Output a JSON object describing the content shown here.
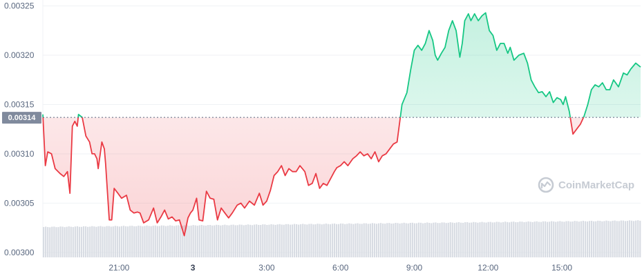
{
  "chart_data": {
    "type": "area",
    "reference_price": 0.003137,
    "reference_label": "0.00314",
    "y_ticks": [
      "0.00300",
      "0.00305",
      "0.00310",
      "0.00315",
      "0.00320",
      "0.00325"
    ],
    "ylim": [
      0.002995,
      0.003256
    ],
    "x_ticks": [
      {
        "label": "21:00",
        "hour": 21.0,
        "bold": false
      },
      {
        "label": "3",
        "hour": 24.0,
        "bold": true
      },
      {
        "label": "3:00",
        "hour": 27.0,
        "bold": false
      },
      {
        "label": "6:00",
        "hour": 30.0,
        "bold": false
      },
      {
        "label": "9:00",
        "hour": 33.0,
        "bold": false
      },
      {
        "label": "12:00",
        "hour": 36.0,
        "bold": false
      },
      {
        "label": "15:00",
        "hour": 39.0,
        "bold": false
      }
    ],
    "x_range_hours": [
      17.9,
      42.2
    ],
    "series": [
      {
        "hour": [
          17.9,
          18.0,
          18.1,
          18.25,
          18.4,
          18.6,
          18.75,
          18.9,
          19.0,
          19.1,
          19.2,
          19.3,
          19.35,
          19.5,
          19.65,
          19.8,
          19.9,
          20.0,
          20.1,
          20.15,
          20.3,
          20.4,
          20.45,
          20.6,
          20.7,
          20.8,
          20.95,
          21.1,
          21.3,
          21.45,
          21.6,
          21.75,
          21.85,
          22.0,
          22.2,
          22.4,
          22.55,
          22.7,
          22.85,
          23.0,
          23.15,
          23.3,
          23.45,
          23.65,
          23.8,
          23.9,
          24.0,
          24.15,
          24.25,
          24.4,
          24.55,
          24.7,
          24.85,
          25.0,
          25.15,
          25.3,
          25.45,
          25.6,
          25.8,
          25.95,
          26.1,
          26.3,
          26.5,
          26.7,
          26.85,
          27.0,
          27.15,
          27.3,
          27.45,
          27.6,
          27.75,
          27.9,
          28.05,
          28.2,
          28.35,
          28.55,
          28.7,
          28.85,
          29.0,
          29.15,
          29.3,
          29.45,
          29.6,
          29.75,
          29.85,
          30.0,
          30.15,
          30.3,
          30.5,
          30.65,
          30.8,
          30.95,
          31.1,
          31.25,
          31.4,
          31.55,
          31.7,
          31.85,
          32.0,
          32.15,
          32.3,
          32.5,
          32.7,
          32.85,
          33.0,
          33.15,
          33.3,
          33.45,
          33.6,
          33.75,
          33.85,
          33.95,
          34.1,
          34.25,
          34.4,
          34.55,
          34.7,
          34.85,
          34.95,
          35.05,
          35.2,
          35.3,
          35.45,
          35.6,
          35.75,
          35.9,
          36.05,
          36.2,
          36.35,
          36.5,
          36.65,
          36.8,
          36.9,
          37.05,
          37.25,
          37.45,
          37.6,
          37.75,
          37.9,
          38.05,
          38.2,
          38.35,
          38.5,
          38.65,
          38.8,
          38.95,
          39.05,
          39.15,
          39.3,
          39.45,
          39.6,
          39.75,
          39.9,
          40.05,
          40.2,
          40.35,
          40.5,
          40.65,
          40.8,
          40.95,
          41.1,
          41.3,
          41.5,
          41.65,
          41.8,
          42.0,
          42.2
        ],
        "price": [
          0.00314,
          0.003088,
          0.003102,
          0.0031,
          0.003085,
          0.00308,
          0.003077,
          0.003082,
          0.00306,
          0.003128,
          0.003133,
          0.003128,
          0.00314,
          0.003137,
          0.003118,
          0.003112,
          0.0031,
          0.0031,
          0.003095,
          0.003085,
          0.003112,
          0.003105,
          0.00309,
          0.003033,
          0.003033,
          0.003065,
          0.00306,
          0.003055,
          0.003058,
          0.003043,
          0.00304,
          0.003041,
          0.00304,
          0.00303,
          0.003033,
          0.003045,
          0.00303,
          0.003036,
          0.003043,
          0.003034,
          0.003036,
          0.003032,
          0.003033,
          0.003017,
          0.003035,
          0.00304,
          0.003043,
          0.003055,
          0.003033,
          0.003032,
          0.003062,
          0.003055,
          0.003054,
          0.003033,
          0.003045,
          0.00304,
          0.003035,
          0.00304,
          0.003048,
          0.00305,
          0.003045,
          0.003052,
          0.003048,
          0.00306,
          0.003048,
          0.003052,
          0.003063,
          0.003078,
          0.003082,
          0.003088,
          0.003078,
          0.003085,
          0.003082,
          0.003082,
          0.003088,
          0.003082,
          0.003068,
          0.00307,
          0.00308,
          0.003065,
          0.00307,
          0.003068,
          0.003075,
          0.003082,
          0.003086,
          0.003088,
          0.003092,
          0.003088,
          0.003095,
          0.003098,
          0.003102,
          0.003098,
          0.0031,
          0.003095,
          0.003102,
          0.003092,
          0.003098,
          0.0031,
          0.003105,
          0.00311,
          0.003112,
          0.00315,
          0.003162,
          0.003185,
          0.003205,
          0.00321,
          0.003205,
          0.003212,
          0.003225,
          0.003215,
          0.0032,
          0.003195,
          0.003202,
          0.003208,
          0.003225,
          0.003235,
          0.003225,
          0.003198,
          0.003212,
          0.003235,
          0.003242,
          0.003235,
          0.003242,
          0.003235,
          0.00324,
          0.003243,
          0.003225,
          0.00322,
          0.003205,
          0.003212,
          0.003212,
          0.003202,
          0.003208,
          0.003195,
          0.0032,
          0.003202,
          0.003192,
          0.003175,
          0.003168,
          0.003162,
          0.003163,
          0.003158,
          0.003163,
          0.003152,
          0.003157,
          0.003155,
          0.00315,
          0.003158,
          0.003143,
          0.00312,
          0.003125,
          0.00313,
          0.003138,
          0.00315,
          0.003165,
          0.00317,
          0.003168,
          0.003172,
          0.003165,
          0.003165,
          0.003175,
          0.003168,
          0.003182,
          0.00318,
          0.003186,
          0.003192,
          0.003188,
          0.003188,
          0.003186
        ]
      }
    ],
    "up_color": "#16c784",
    "down_color": "#ea3943",
    "volume": {
      "color": "#d8dce3",
      "relative_start": 0.8,
      "relative_end": 0.97
    },
    "grid": true,
    "legend": "none",
    "watermark": {
      "text": "CoinMarketCap",
      "icon": "coinmarketcap-logo-icon"
    }
  }
}
